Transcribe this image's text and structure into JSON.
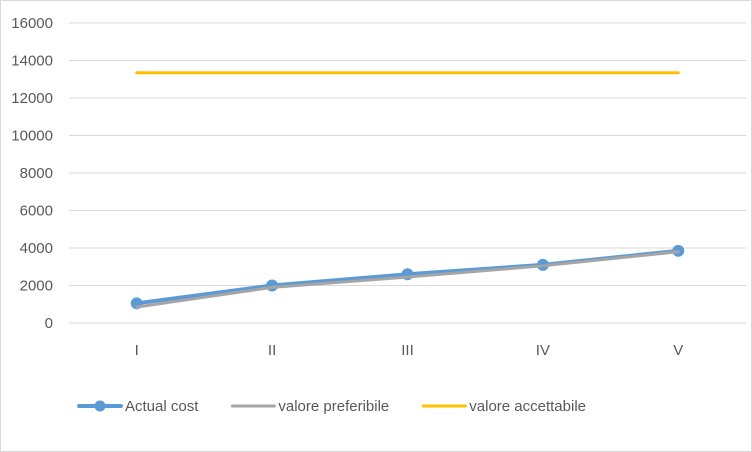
{
  "chart_data": {
    "type": "line",
    "categories": [
      "I",
      "II",
      "III",
      "IV",
      "V"
    ],
    "ylim": [
      0,
      16000
    ],
    "yticks": [
      0,
      2000,
      4000,
      6000,
      8000,
      10000,
      12000,
      14000,
      16000
    ],
    "grid": true,
    "legend_position": "bottom-left",
    "series": [
      {
        "name": "Actual cost",
        "values": [
          1050,
          2000,
          2600,
          3100,
          3850
        ],
        "color": "#5b9bd5",
        "markers": true
      },
      {
        "name": "valore preferibile",
        "values": [
          850,
          1900,
          2450,
          3050,
          3800
        ],
        "color": "#a5a5a5",
        "markers": false
      },
      {
        "name": "valore accettabile",
        "values": [
          13350,
          13350,
          13350,
          13350,
          13350
        ],
        "color": "#ffc000",
        "markers": false
      }
    ]
  }
}
